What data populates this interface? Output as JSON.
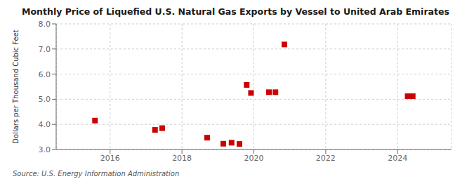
{
  "chart_data": {
    "type": "scatter",
    "title": "Monthly Price of Liquefied U.S. Natural Gas Exports by Vessel to United Arab Emirates",
    "ylabel": "Dollars per Thousand Cubic Feet",
    "annotations": [
      "Source: U.S. Energy Information Administration"
    ],
    "x": [
      2015.58,
      2017.25,
      2017.45,
      2018.7,
      2019.15,
      2019.38,
      2019.6,
      2019.8,
      2019.92,
      2020.42,
      2020.6,
      2020.85,
      2024.28,
      2024.42
    ],
    "values": [
      4.15,
      3.78,
      3.85,
      3.47,
      3.23,
      3.27,
      3.22,
      5.57,
      5.25,
      5.28,
      5.28,
      7.18,
      5.12,
      5.12
    ],
    "color": "#cc0000",
    "marker": "square",
    "xlim": [
      2014.5,
      2025.5
    ],
    "xticks": [
      2016,
      2018,
      2020,
      2022,
      2024
    ],
    "ylim": [
      3.0,
      8.0
    ],
    "yticks": [
      {
        "value": 3.0,
        "label": "3.0"
      },
      {
        "value": 4.0,
        "label": "4.0"
      },
      {
        "value": 5.0,
        "label": "5.0"
      },
      {
        "value": 6.0,
        "label": "6.0"
      },
      {
        "value": 7.0,
        "label": "7.0"
      },
      {
        "value": 8.0,
        "label": "8.0"
      }
    ],
    "grid": true
  }
}
